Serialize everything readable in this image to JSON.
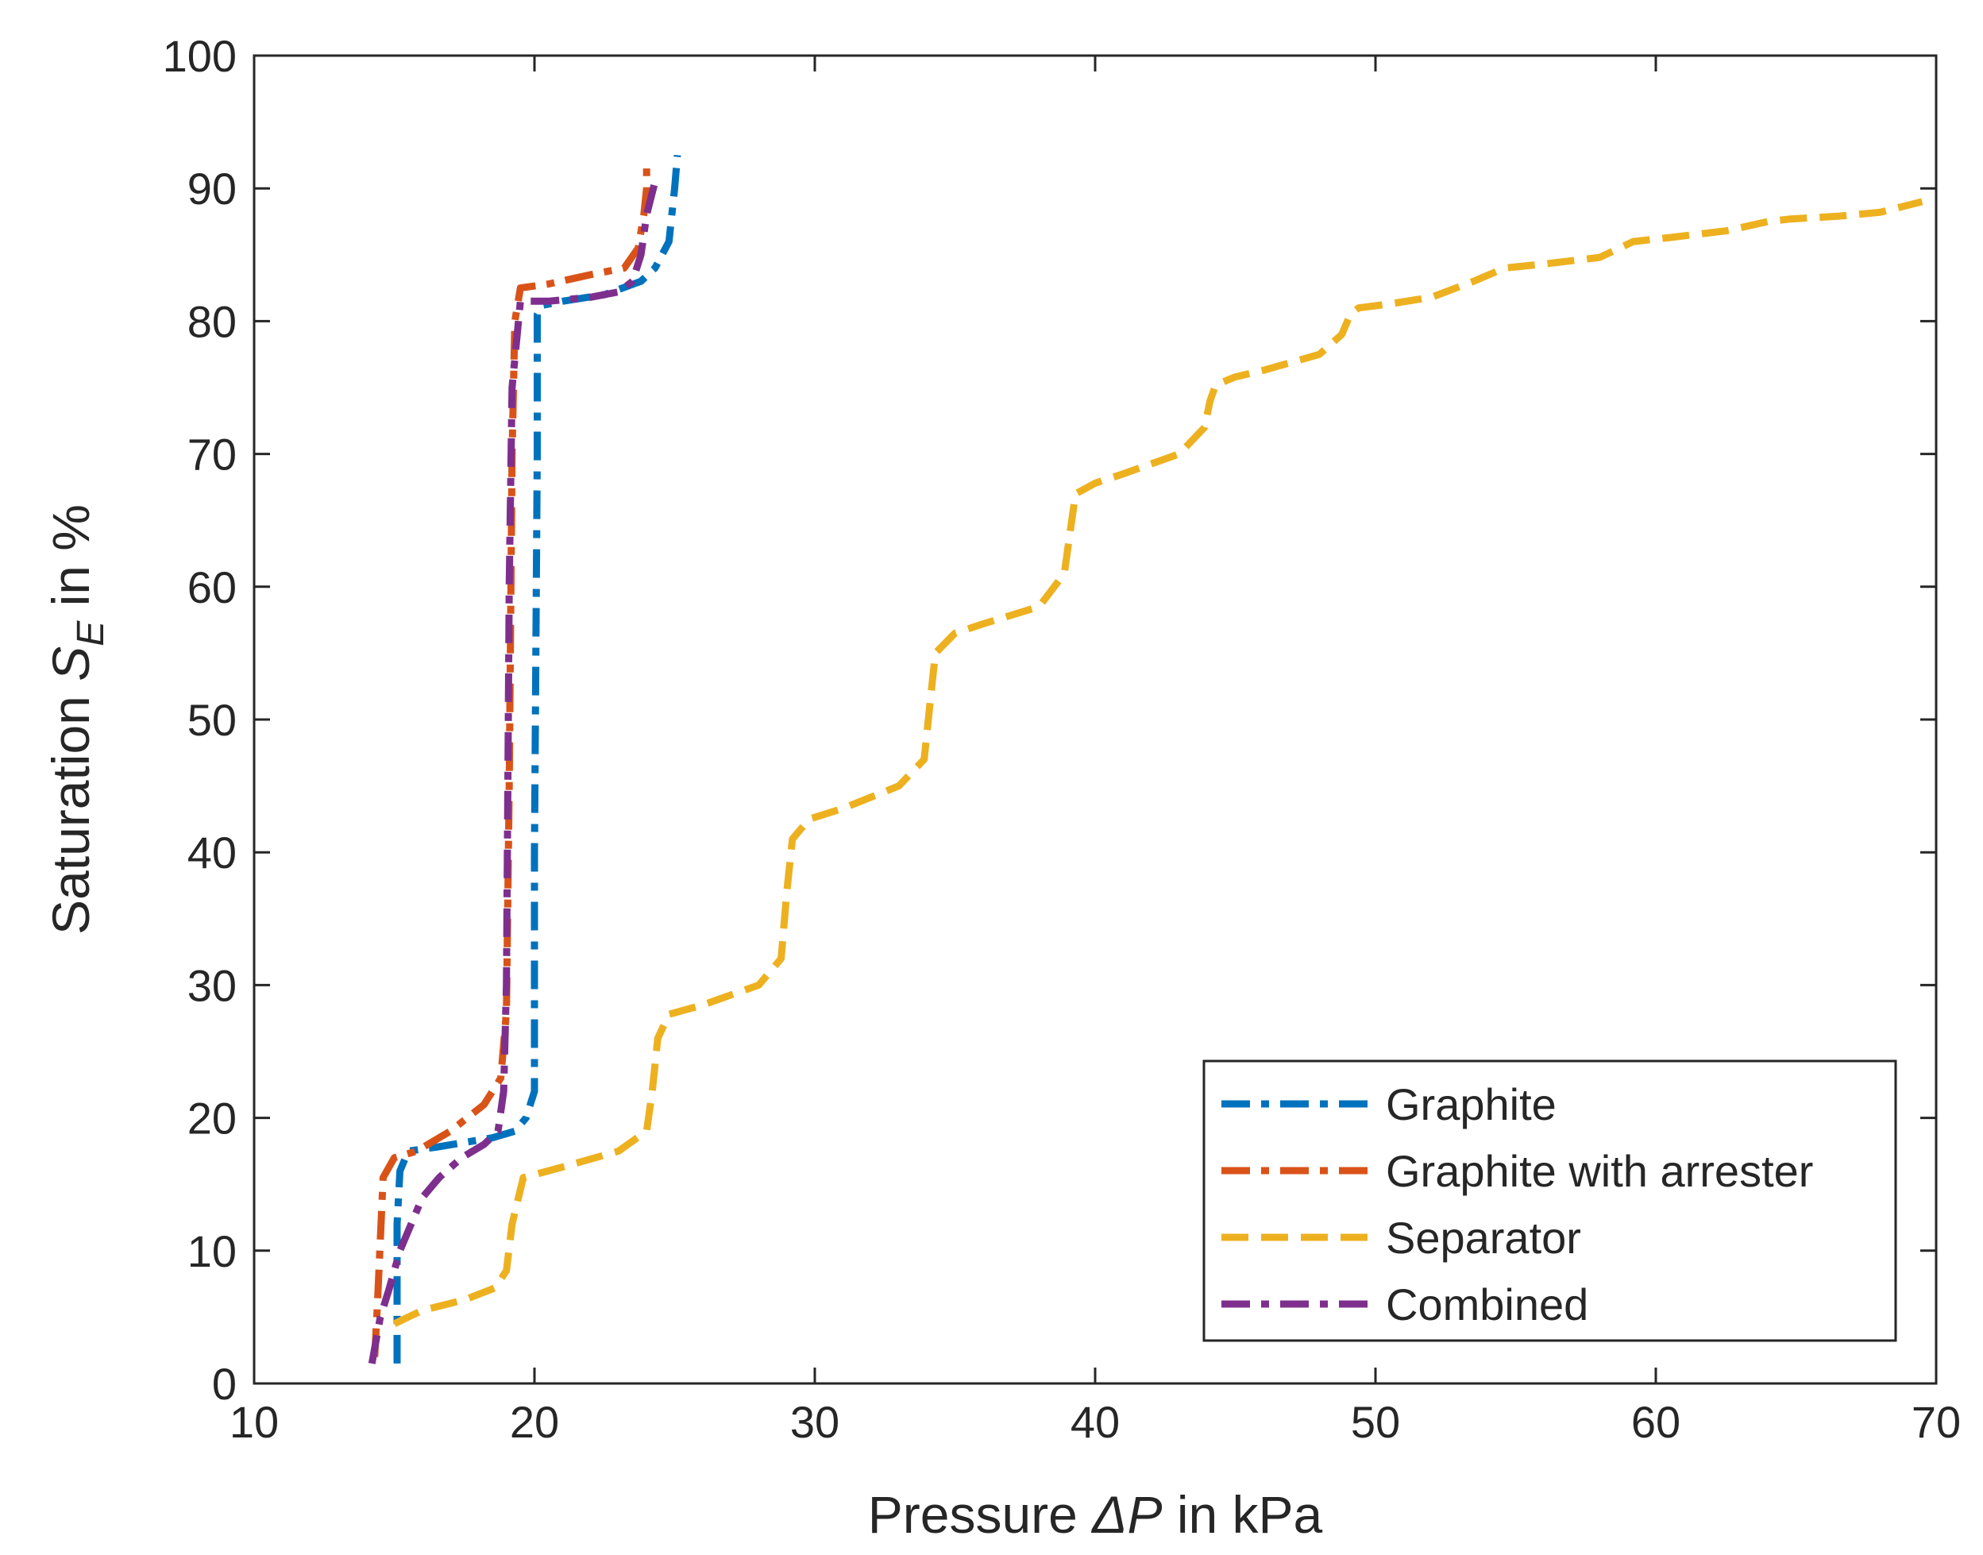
{
  "chart_data": {
    "type": "line",
    "title": "",
    "xlabel": "Pressure ΔP in kPa",
    "xlabel_parts": {
      "prefix": "Pressure ",
      "symbol": "ΔP",
      "suffix": " in kPa"
    },
    "ylabel": "Saturation S_E in %",
    "ylabel_parts": {
      "prefix": "Saturation ",
      "symbol": "S",
      "subscript": "E",
      "suffix": " in %"
    },
    "xlim": [
      10,
      70
    ],
    "ylim": [
      0,
      100
    ],
    "xticks": [
      10,
      20,
      30,
      40,
      50,
      60,
      70
    ],
    "yticks": [
      0,
      10,
      20,
      30,
      40,
      50,
      60,
      70,
      80,
      90,
      100
    ],
    "grid": false,
    "legend_position": "bottom-right",
    "series": [
      {
        "name": "Graphite",
        "color": "#0072BD",
        "dash": "dash-dot",
        "x": [
          15.1,
          15.1,
          15.2,
          15.5,
          16.5,
          18.5,
          19.3,
          19.7,
          20.0,
          20.0,
          20.1,
          20.1,
          20.3,
          21.0,
          22.5,
          23.8,
          24.3,
          24.8,
          25.0,
          25.1
        ],
        "y": [
          1.5,
          12,
          16,
          17.5,
          17.8,
          18.5,
          19,
          20,
          22,
          40,
          70,
          80.5,
          81.2,
          81.5,
          82,
          83,
          84,
          86,
          90,
          92.5
        ]
      },
      {
        "name": "Graphite with arrester",
        "color": "#D95319",
        "dash": "dash-dot",
        "x": [
          14.3,
          14.4,
          14.6,
          15.0,
          15.8,
          17.0,
          18.2,
          18.8,
          19.0,
          19.1,
          19.2,
          19.3,
          19.5,
          20.5,
          22.0,
          23.2,
          23.7,
          23.9,
          24.0,
          24.0
        ],
        "y": [
          2,
          6,
          15.5,
          17,
          17.5,
          19,
          21,
          23,
          28,
          45,
          70,
          80,
          82.5,
          82.8,
          83.5,
          84,
          85.5,
          88,
          90,
          91.5
        ]
      },
      {
        "name": "Separator",
        "color": "#EDB120",
        "dash": "dashed",
        "x": [
          15.0,
          16.0,
          17.5,
          18.6,
          19.0,
          19.2,
          19.6,
          21.0,
          23.0,
          24.0,
          24.2,
          24.4,
          24.8,
          26.0,
          28.0,
          28.8,
          29.0,
          29.2,
          29.8,
          31.0,
          33.0,
          33.9,
          34.1,
          34.3,
          35.0,
          36.0,
          38.0,
          38.9,
          39.1,
          39.3,
          40.0,
          41.0,
          43.0,
          43.9,
          44.1,
          44.3,
          45.0,
          46.0,
          48.0,
          48.8,
          49.1,
          49.4,
          50.5,
          52.0,
          53.5,
          54.6,
          56.0,
          58.0,
          59.2,
          60.5,
          62.5,
          64.0,
          64.8,
          66.5,
          68.0,
          69.5
        ],
        "y": [
          4.5,
          5.5,
          6.3,
          7.2,
          8.5,
          12,
          15.5,
          16.3,
          17.5,
          19,
          22,
          26,
          27.8,
          28.5,
          30,
          32,
          37,
          41,
          42.5,
          43.3,
          45,
          47,
          51,
          55,
          56.5,
          57.2,
          58.5,
          61,
          64,
          67,
          67.8,
          68.5,
          70,
          72,
          74,
          75.2,
          75.8,
          76.3,
          77.5,
          79,
          80.5,
          81,
          81.3,
          81.8,
          83,
          84,
          84.3,
          84.8,
          86,
          86.3,
          86.8,
          87.5,
          87.7,
          87.9,
          88.2,
          89
        ]
      },
      {
        "name": "Combined",
        "color": "#7E2F8E",
        "dash": "dash-dot",
        "x": [
          14.2,
          14.5,
          14.8,
          15.2,
          15.6,
          16.0,
          16.6,
          17.4,
          18.2,
          18.7,
          18.9,
          19.0,
          19.05,
          19.1,
          19.2,
          19.5,
          20.5,
          22.0,
          23.0,
          23.5,
          23.8,
          24.0,
          24.3
        ],
        "y": [
          1.5,
          5,
          7,
          10,
          12,
          14,
          15.5,
          17,
          18,
          19,
          22,
          30,
          45,
          60,
          75,
          81.5,
          81.5,
          81.8,
          82.2,
          83,
          85,
          88,
          90.5
        ]
      }
    ]
  }
}
